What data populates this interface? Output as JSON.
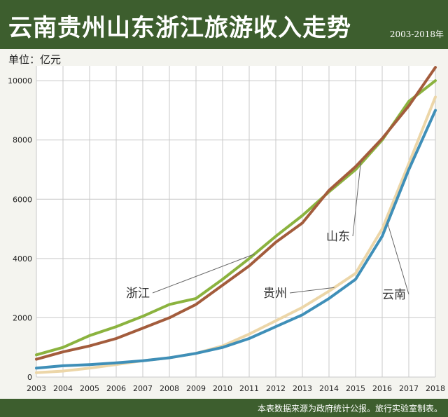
{
  "header": {
    "title": "云南贵州山东浙江旅游收入走势",
    "range": "2003-2018年"
  },
  "unit_label": "单位：亿元",
  "footer": {
    "source": "本表数据来源为政府统计公报。旅行实验室制表。"
  },
  "colors": {
    "header_bg": "#3d5e2e",
    "浙江": "#8bb33f",
    "山东": "#a35c3c",
    "贵州": "#ecd6a8",
    "云南": "#3f8fb8",
    "grid": "#c9c9c9"
  },
  "chart_data": {
    "type": "line",
    "xlabel": "",
    "ylabel": "单位：亿元",
    "ylim": [
      0,
      10500
    ],
    "yticks": [
      0,
      2000,
      4000,
      6000,
      8000,
      10000
    ],
    "grid": true,
    "legend": "inline labels",
    "x": [
      2003,
      2004,
      2005,
      2006,
      2007,
      2008,
      2009,
      2010,
      2011,
      2012,
      2013,
      2014,
      2015,
      2016,
      2017,
      2018
    ],
    "series": [
      {
        "name": "浙江",
        "values": [
          750,
          1000,
          1400,
          1700,
          2050,
          2450,
          2650,
          3300,
          4000,
          4750,
          5450,
          6250,
          7000,
          8000,
          9300,
          10000
        ]
      },
      {
        "name": "山东",
        "values": [
          600,
          850,
          1050,
          1300,
          1650,
          2000,
          2450,
          3100,
          3750,
          4550,
          5200,
          6300,
          7100,
          8050,
          9150,
          10450
        ]
      },
      {
        "name": "贵州",
        "values": [
          150,
          200,
          300,
          420,
          550,
          650,
          800,
          1050,
          1450,
          1900,
          2350,
          2900,
          3500,
          5000,
          7200,
          9450
        ]
      },
      {
        "name": "云南",
        "values": [
          300,
          380,
          420,
          480,
          550,
          650,
          800,
          1000,
          1300,
          1700,
          2100,
          2650,
          3300,
          4750,
          7000,
          9000
        ]
      }
    ]
  }
}
